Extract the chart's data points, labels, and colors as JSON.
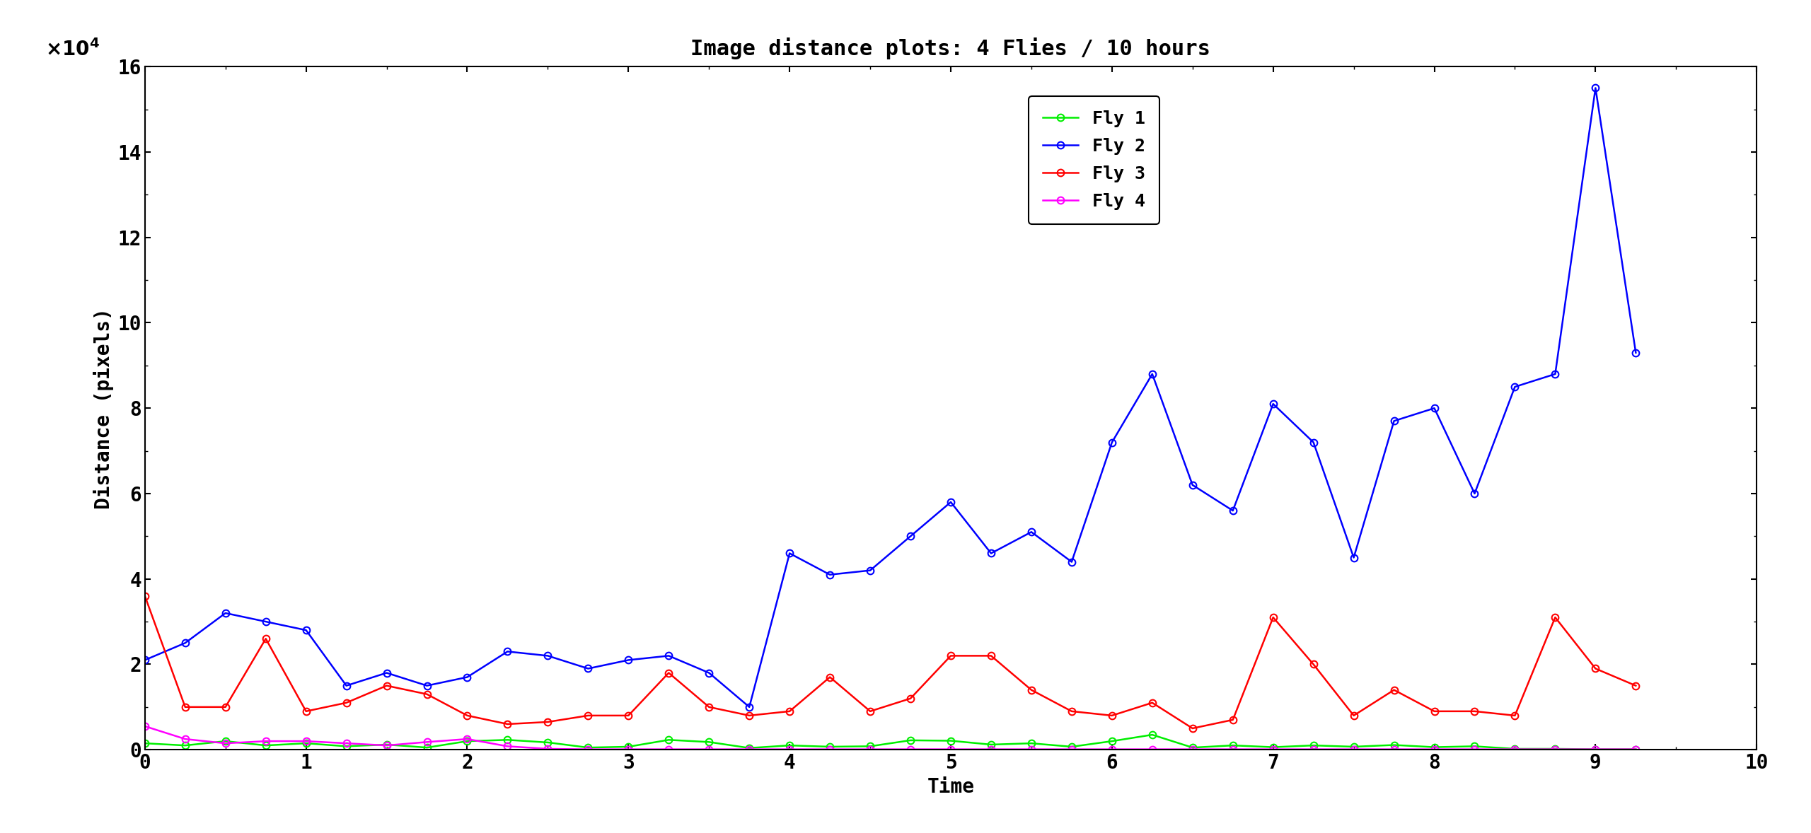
{
  "title": "Image distance plots: 4 Flies / 10 hours",
  "xlabel": "Time",
  "ylabel": "Distance (pixels)",
  "ylim": [
    0,
    160000
  ],
  "xlim": [
    0,
    10
  ],
  "fly1_color": "#00ee00",
  "fly2_color": "#0000ff",
  "fly3_color": "#ff0000",
  "fly4_color": "#ff00ff",
  "fly1_label": "Fly 1",
  "fly2_label": "Fly 2",
  "fly3_label": "Fly 3",
  "fly4_label": "Fly 4",
  "fly1_x": [
    0.0,
    0.25,
    0.5,
    0.75,
    1.0,
    1.25,
    1.5,
    1.75,
    2.0,
    2.25,
    2.5,
    2.75,
    3.0,
    3.25,
    3.5,
    3.75,
    4.0,
    4.25,
    4.5,
    4.75,
    5.0,
    5.25,
    5.5,
    5.75,
    6.0,
    6.25,
    6.5,
    6.75,
    7.0,
    7.25,
    7.5,
    7.75,
    8.0,
    8.25,
    8.5,
    8.75,
    9.0,
    9.25
  ],
  "fly1_y": [
    1500,
    1000,
    2000,
    1000,
    1500,
    800,
    1200,
    500,
    2000,
    2300,
    1700,
    500,
    700,
    2300,
    1800,
    400,
    1000,
    700,
    800,
    2200,
    2100,
    1200,
    1500,
    700,
    2000,
    3500,
    500,
    1000,
    600,
    1000,
    700,
    1100,
    600,
    800,
    200,
    200,
    100,
    100
  ],
  "fly2_x": [
    0.0,
    0.25,
    0.5,
    0.75,
    1.0,
    1.25,
    1.5,
    1.75,
    2.0,
    2.25,
    2.5,
    2.75,
    3.0,
    3.25,
    3.5,
    3.75,
    4.0,
    4.25,
    4.5,
    4.75,
    5.0,
    5.25,
    5.5,
    5.75,
    6.0,
    6.25,
    6.5,
    6.75,
    7.0,
    7.25,
    7.5,
    7.75,
    8.0,
    8.25,
    8.5,
    8.75,
    9.0,
    9.25
  ],
  "fly2_y": [
    21000,
    25000,
    32000,
    30000,
    28000,
    15000,
    18000,
    15000,
    17000,
    23000,
    22000,
    19000,
    21000,
    22000,
    18000,
    10000,
    46000,
    41000,
    42000,
    50000,
    58000,
    46000,
    51000,
    44000,
    72000,
    88000,
    62000,
    56000,
    81000,
    72000,
    45000,
    77000,
    80000,
    60000,
    85000,
    88000,
    155000,
    93000
  ],
  "fly3_x": [
    0.0,
    0.25,
    0.5,
    0.75,
    1.0,
    1.25,
    1.5,
    1.75,
    2.0,
    2.25,
    2.5,
    2.75,
    3.0,
    3.25,
    3.5,
    3.75,
    4.0,
    4.25,
    4.5,
    4.75,
    5.0,
    5.25,
    5.5,
    5.75,
    6.0,
    6.25,
    6.5,
    6.75,
    7.0,
    7.25,
    7.5,
    7.75,
    8.0,
    8.25,
    8.5,
    8.75,
    9.0,
    9.25
  ],
  "fly3_y": [
    36000,
    10000,
    10000,
    26000,
    9000,
    11000,
    15000,
    13000,
    8000,
    6000,
    6500,
    8000,
    8000,
    18000,
    10000,
    8000,
    9000,
    17000,
    9000,
    12000,
    22000,
    22000,
    14000,
    9000,
    8000,
    11000,
    5000,
    7000,
    31000,
    20000,
    8000,
    14000,
    9000,
    9000,
    8000,
    31000,
    19000,
    15000
  ],
  "fly4_x": [
    0.0,
    0.25,
    0.5,
    0.75,
    1.0,
    1.25,
    1.5,
    1.75,
    2.0,
    2.25,
    2.5,
    2.75,
    3.0,
    3.25,
    3.5,
    3.75,
    4.0,
    4.25,
    4.5,
    4.75,
    5.0,
    5.25,
    5.5,
    5.75,
    6.0,
    6.25,
    6.5,
    6.75,
    7.0,
    7.25,
    7.5,
    7.75,
    8.0,
    8.25,
    8.5,
    8.75,
    9.0,
    9.25
  ],
  "fly4_y": [
    5500,
    2500,
    1500,
    2000,
    2000,
    1500,
    1000,
    1800,
    2500,
    800,
    200,
    100,
    100,
    100,
    100,
    100,
    100,
    100,
    100,
    100,
    100,
    100,
    100,
    100,
    100,
    100,
    100,
    100,
    100,
    100,
    100,
    100,
    100,
    100,
    100,
    100,
    100,
    100
  ],
  "bg_color": "#ffffff",
  "title_fontsize": 22,
  "label_fontsize": 20,
  "tick_fontsize": 20,
  "legend_fontsize": 18,
  "linewidth": 1.8,
  "markersize": 7
}
